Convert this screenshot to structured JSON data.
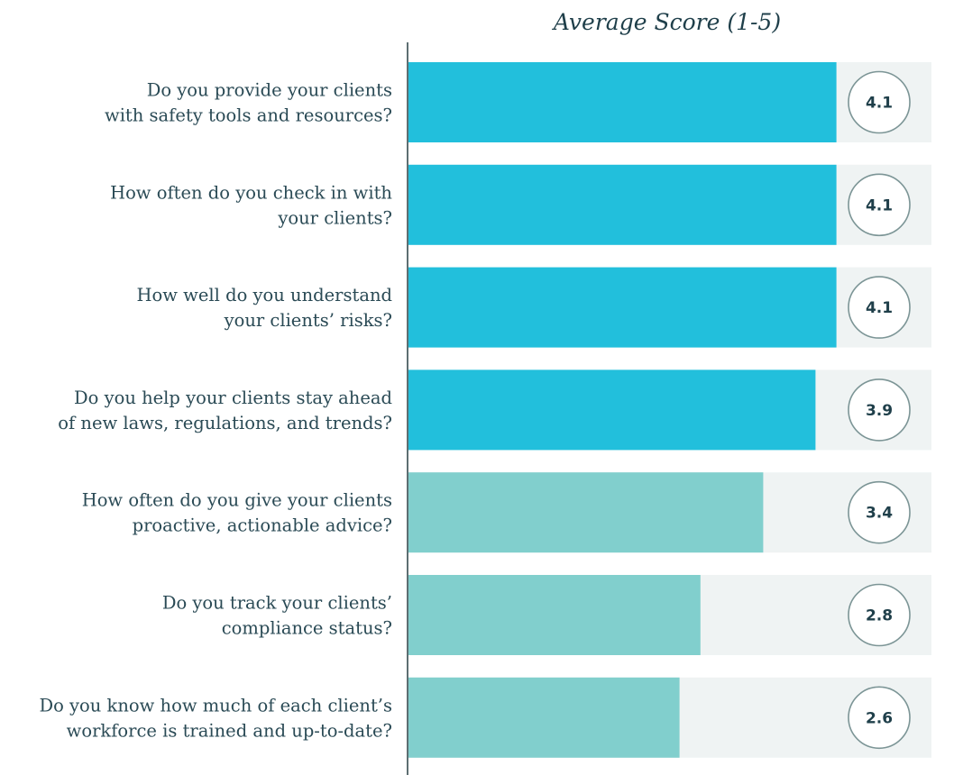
{
  "chart_data": {
    "type": "bar",
    "orientation": "horizontal",
    "title": "Average Score (1-5)",
    "xlim": [
      0,
      5
    ],
    "categories": [
      [
        "Do you provide your clients",
        "with safety tools and resources?"
      ],
      [
        "How often do you check in with",
        "your clients?"
      ],
      [
        "How well do you understand",
        "your clients’ risks?"
      ],
      [
        "Do you help your clients stay ahead",
        "of new laws, regulations, and trends?"
      ],
      [
        "How often do you give your clients",
        "proactive, actionable advice?"
      ],
      [
        "Do you track your clients’",
        "compliance status?"
      ],
      [
        "Do you know how much of each client’s",
        "workforce is trained and up-to-date?"
      ]
    ],
    "values": [
      4.1,
      4.1,
      4.1,
      3.9,
      3.4,
      2.8,
      2.6
    ],
    "value_labels": [
      "4.1",
      "4.1",
      "4.1",
      "3.9",
      "3.4",
      "2.8",
      "2.6"
    ],
    "bar_colors": [
      "#22bfdc",
      "#22bfdc",
      "#22bfdc",
      "#22bfdc",
      "#81cfcd",
      "#81cfcd",
      "#81cfcd"
    ],
    "track_color": "#eff3f3",
    "axis_color": "#5d6f72",
    "badge_border_color": "#7c9596",
    "grid": false,
    "legend": "none"
  }
}
